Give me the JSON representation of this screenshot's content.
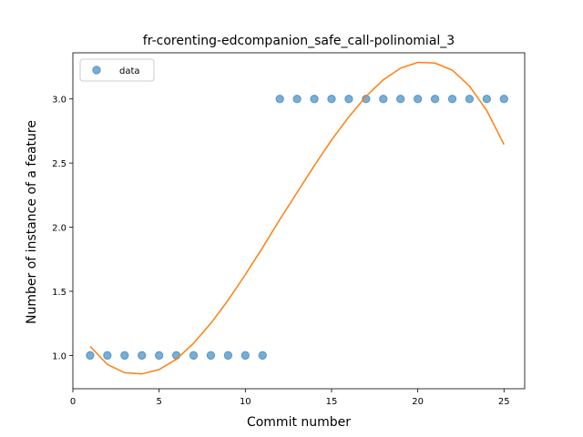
{
  "chart_data": {
    "type": "scatter",
    "title": "fr-corenting-edcompanion_safe_call-polinomial_3",
    "xlabel": "Commit number",
    "ylabel": "Number of instance of a feature",
    "xlim": [
      0,
      26.2
    ],
    "ylim": [
      0.74,
      3.36
    ],
    "xticks": [
      0,
      5,
      10,
      15,
      20,
      25
    ],
    "yticks": [
      1.0,
      1.5,
      2.0,
      2.5,
      3.0
    ],
    "xtick_labels": [
      "0",
      "5",
      "10",
      "15",
      "20",
      "25"
    ],
    "ytick_labels": [
      "1.0",
      "1.5",
      "2.0",
      "2.5",
      "3.0"
    ],
    "legend": {
      "placement": "top-left",
      "entries": [
        "data"
      ]
    },
    "series": [
      {
        "name": "data",
        "kind": "scatter",
        "color": "#1f77b4",
        "x": [
          1,
          2,
          3,
          4,
          5,
          6,
          7,
          8,
          9,
          10,
          11,
          12,
          13,
          14,
          15,
          16,
          17,
          18,
          19,
          20,
          21,
          22,
          23,
          24,
          25
        ],
        "y": [
          1,
          1,
          1,
          1,
          1,
          1,
          1,
          1,
          1,
          1,
          1,
          3,
          3,
          3,
          3,
          3,
          3,
          3,
          3,
          3,
          3,
          3,
          3,
          3,
          3
        ]
      },
      {
        "kind": "line",
        "color": "#ff7f0e",
        "x": [
          1,
          2,
          3,
          4,
          5,
          6,
          7,
          8,
          9,
          10,
          11,
          12,
          13,
          14,
          15,
          16,
          17,
          18,
          19,
          20,
          21,
          22,
          23,
          24,
          25
        ],
        "y": [
          1.07,
          0.93,
          0.865,
          0.855,
          0.89,
          0.97,
          1.095,
          1.25,
          1.43,
          1.63,
          1.84,
          2.06,
          2.27,
          2.48,
          2.68,
          2.86,
          3.02,
          3.15,
          3.24,
          3.285,
          3.28,
          3.225,
          3.1,
          2.91,
          2.645
        ]
      }
    ]
  }
}
